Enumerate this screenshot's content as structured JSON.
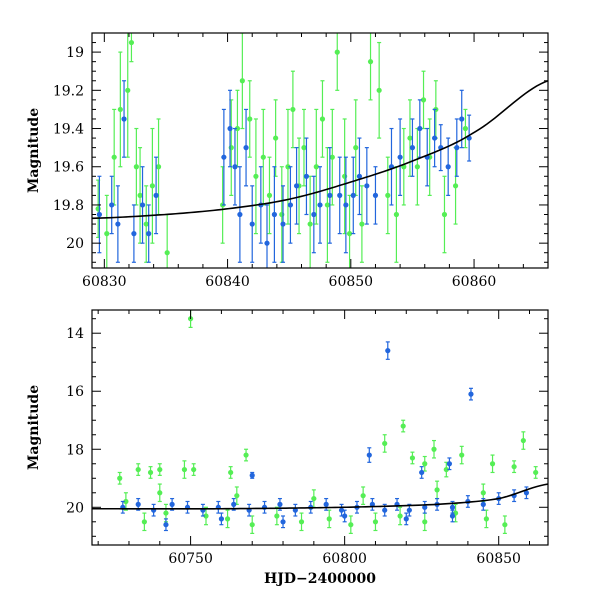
{
  "chart_data": [
    {
      "type": "scatter",
      "title": "",
      "xlabel": "",
      "ylabel": "Magnitude",
      "xlim": [
        60829,
        60866
      ],
      "ylim": [
        20.13,
        18.9
      ],
      "y_inverted": true,
      "xticks": [
        60830,
        60840,
        60850,
        60860
      ],
      "yticks": [
        19,
        19.2,
        19.4,
        19.6,
        19.8,
        20
      ],
      "colors": {
        "green": "#55ee55",
        "blue": "#2266dd",
        "curve": "#000000"
      },
      "trend_curve": {
        "x": [
          60829,
          60835,
          60840,
          60845,
          60850,
          60855,
          60860,
          60866
        ],
        "y": [
          19.87,
          19.85,
          19.82,
          19.77,
          19.68,
          19.57,
          19.42,
          19.15
        ]
      },
      "series": [
        {
          "color": "green",
          "points": [
            [
              60829.5,
              19.82,
              0.15
            ],
            [
              60830.2,
              19.95,
              0.2
            ],
            [
              60830.8,
              19.55,
              0.25
            ],
            [
              60831.3,
              19.3,
              0.3
            ],
            [
              60831.9,
              19.2,
              0.35
            ],
            [
              60832.2,
              18.95,
              0.1
            ],
            [
              60832.6,
              19.6,
              0.2
            ],
            [
              60832.9,
              19.75,
              0.25
            ],
            [
              60833.4,
              19.9,
              0.2
            ],
            [
              60833.9,
              19.7,
              0.3
            ],
            [
              60834.4,
              19.6,
              0.25
            ],
            [
              60835.1,
              20.05,
              0.2
            ],
            [
              60839.6,
              19.8,
              0.2
            ],
            [
              60840.3,
              19.5,
              0.25
            ],
            [
              60840.8,
              19.4,
              0.2
            ],
            [
              60841.2,
              19.15,
              0.25
            ],
            [
              60841.8,
              19.35,
              0.2
            ],
            [
              60842.3,
              19.65,
              0.3
            ],
            [
              60842.9,
              19.55,
              0.25
            ],
            [
              60843.4,
              19.75,
              0.2
            ],
            [
              60843.9,
              19.45,
              0.2
            ],
            [
              60844.4,
              19.85,
              0.25
            ],
            [
              60844.9,
              19.6,
              0.3
            ],
            [
              60845.3,
              19.3,
              0.2
            ],
            [
              60845.8,
              19.7,
              0.25
            ],
            [
              60846.2,
              19.5,
              0.2
            ],
            [
              60846.7,
              19.9,
              0.25
            ],
            [
              60847.2,
              19.6,
              0.3
            ],
            [
              60847.7,
              19.35,
              0.2
            ],
            [
              60848.1,
              19.8,
              0.3
            ],
            [
              60848.5,
              19.55,
              0.25
            ],
            [
              60848.9,
              19.0,
              0.2
            ],
            [
              60849.5,
              19.65,
              0.3
            ],
            [
              60849.9,
              19.95,
              0.2
            ],
            [
              60850.4,
              19.5,
              0.25
            ],
            [
              60850.9,
              19.9,
              0.2
            ],
            [
              60851.6,
              19.05,
              0.2
            ],
            [
              60852.3,
              19.2,
              0.25
            ],
            [
              60853.0,
              19.75,
              0.2
            ],
            [
              60853.7,
              19.85,
              0.25
            ],
            [
              60854.3,
              19.6,
              0.2
            ],
            [
              60854.8,
              19.45,
              0.2
            ],
            [
              60855.4,
              19.6,
              0.2
            ],
            [
              60855.9,
              19.25,
              0.15
            ],
            [
              60856.4,
              19.55,
              0.2
            ],
            [
              60856.9,
              19.3,
              0.15
            ],
            [
              60857.6,
              19.85,
              0.2
            ],
            [
              60858.5,
              19.7,
              0.2
            ],
            [
              60859.3,
              19.4,
              0.1
            ]
          ]
        },
        {
          "color": "blue",
          "points": [
            [
              60829.6,
              19.85,
              0.2
            ],
            [
              60830.6,
              19.8,
              0.15
            ],
            [
              60831.1,
              19.9,
              0.2
            ],
            [
              60831.6,
              19.35,
              0.2
            ],
            [
              60832.4,
              19.95,
              0.15
            ],
            [
              60833.1,
              19.8,
              0.2
            ],
            [
              60833.6,
              19.95,
              0.15
            ],
            [
              60834.2,
              19.75,
              0.2
            ],
            [
              60839.7,
              19.55,
              0.25
            ],
            [
              60840.2,
              19.4,
              0.2
            ],
            [
              60840.6,
              19.6,
              0.2
            ],
            [
              60841.0,
              19.85,
              0.25
            ],
            [
              60841.5,
              19.5,
              0.2
            ],
            [
              60842.0,
              19.9,
              0.2
            ],
            [
              60842.7,
              19.8,
              0.2
            ],
            [
              60843.2,
              20.0,
              0.2
            ],
            [
              60843.8,
              19.85,
              0.25
            ],
            [
              60844.5,
              19.9,
              0.2
            ],
            [
              60845.1,
              19.8,
              0.2
            ],
            [
              60845.6,
              19.7,
              0.2
            ],
            [
              60846.4,
              19.65,
              0.2
            ],
            [
              60847.0,
              19.85,
              0.2
            ],
            [
              60847.5,
              19.8,
              0.2
            ],
            [
              60848.3,
              19.75,
              0.25
            ],
            [
              60849.1,
              19.75,
              0.2
            ],
            [
              60849.6,
              19.8,
              0.25
            ],
            [
              60850.2,
              19.75,
              0.2
            ],
            [
              60850.7,
              19.65,
              0.2
            ],
            [
              60851.3,
              19.7,
              0.2
            ],
            [
              60852.0,
              19.75,
              0.15
            ],
            [
              60853.3,
              19.6,
              0.2
            ],
            [
              60854.0,
              19.55,
              0.2
            ],
            [
              60855.0,
              19.5,
              0.15
            ],
            [
              60855.6,
              19.4,
              0.15
            ],
            [
              60856.2,
              19.55,
              0.15
            ],
            [
              60856.8,
              19.45,
              0.15
            ],
            [
              60857.3,
              19.5,
              0.12
            ],
            [
              60857.9,
              19.6,
              0.15
            ],
            [
              60858.6,
              19.5,
              0.15
            ],
            [
              60859.0,
              19.35,
              0.15
            ],
            [
              60859.6,
              19.45,
              0.12
            ]
          ]
        }
      ]
    },
    {
      "type": "scatter",
      "title": "",
      "xlabel": "HJD−2400000",
      "ylabel": "Magnitude",
      "xlim": [
        60718,
        60866
      ],
      "ylim": [
        21.3,
        13.2
      ],
      "y_inverted": true,
      "xticks": [
        60750,
        60800,
        60850
      ],
      "yticks": [
        14,
        16,
        18,
        20
      ],
      "trend_curve": {
        "x": [
          60718,
          60760,
          60800,
          60830,
          60850,
          60866
        ],
        "y": [
          20.05,
          20.05,
          20.0,
          19.9,
          19.7,
          19.2
        ]
      },
      "series": [
        {
          "color": "green",
          "points": [
            [
              60750,
              13.5,
              0.3
            ],
            [
              60727,
              19.0,
              0.2
            ],
            [
              60733,
              18.7,
              0.2
            ],
            [
              60737,
              18.8,
              0.2
            ],
            [
              60740,
              18.7,
              0.2
            ],
            [
              60748,
              18.7,
              0.3
            ],
            [
              60751,
              18.7,
              0.2
            ],
            [
              60763,
              18.8,
              0.2
            ],
            [
              60768,
              18.2,
              0.2
            ],
            [
              60813,
              17.8,
              0.3
            ],
            [
              60819,
              17.2,
              0.2
            ],
            [
              60822,
              18.3,
              0.2
            ],
            [
              60826,
              18.5,
              0.25
            ],
            [
              60829,
              18.0,
              0.3
            ],
            [
              60833,
              18.7,
              0.25
            ],
            [
              60838,
              18.2,
              0.3
            ],
            [
              60848,
              18.5,
              0.3
            ],
            [
              60855,
              18.6,
              0.2
            ],
            [
              60858,
              17.7,
              0.3
            ],
            [
              60862,
              18.8,
              0.2
            ],
            [
              60729,
              19.8,
              0.3
            ],
            [
              60735,
              20.5,
              0.3
            ],
            [
              60742,
              20.2,
              0.3
            ],
            [
              60755,
              20.3,
              0.3
            ],
            [
              60762,
              20.4,
              0.3
            ],
            [
              60770,
              20.6,
              0.3
            ],
            [
              60778,
              20.3,
              0.3
            ],
            [
              60786,
              20.5,
              0.3
            ],
            [
              60795,
              20.4,
              0.3
            ],
            [
              60802,
              20.6,
              0.3
            ],
            [
              60810,
              20.5,
              0.3
            ],
            [
              60818,
              20.3,
              0.3
            ],
            [
              60826,
              20.5,
              0.3
            ],
            [
              60836,
              20.2,
              0.3
            ],
            [
              60846,
              20.4,
              0.3
            ],
            [
              60852,
              20.6,
              0.3
            ],
            [
              60740,
              19.5,
              0.3
            ],
            [
              60765,
              19.6,
              0.3
            ],
            [
              60790,
              19.7,
              0.3
            ],
            [
              60806,
              19.6,
              0.3
            ],
            [
              60830,
              19.4,
              0.3
            ],
            [
              60845,
              19.5,
              0.3
            ]
          ]
        },
        {
          "color": "blue",
          "points": [
            [
              60814,
              14.6,
              0.3
            ],
            [
              60841,
              16.1,
              0.2
            ],
            [
              60808,
              18.2,
              0.25
            ],
            [
              60834,
              18.5,
              0.2
            ],
            [
              60825,
              18.8,
              0.2
            ],
            [
              60770,
              18.9,
              0.1
            ],
            [
              60728,
              20.0,
              0.2
            ],
            [
              60733,
              19.9,
              0.2
            ],
            [
              60738,
              20.1,
              0.2
            ],
            [
              60744,
              19.9,
              0.2
            ],
            [
              60749,
              20.0,
              0.2
            ],
            [
              60754,
              20.1,
              0.2
            ],
            [
              60759,
              20.0,
              0.2
            ],
            [
              60764,
              19.9,
              0.2
            ],
            [
              60769,
              20.1,
              0.2
            ],
            [
              60774,
              20.0,
              0.2
            ],
            [
              60779,
              19.9,
              0.2
            ],
            [
              60784,
              20.1,
              0.2
            ],
            [
              60789,
              20.0,
              0.2
            ],
            [
              60794,
              19.9,
              0.2
            ],
            [
              60799,
              20.1,
              0.2
            ],
            [
              60804,
              20.0,
              0.2
            ],
            [
              60809,
              19.9,
              0.2
            ],
            [
              60813,
              20.1,
              0.2
            ],
            [
              60817,
              19.9,
              0.2
            ],
            [
              60821,
              20.1,
              0.2
            ],
            [
              60826,
              20.0,
              0.2
            ],
            [
              60830,
              19.9,
              0.2
            ],
            [
              60835,
              20.0,
              0.2
            ],
            [
              60840,
              19.8,
              0.2
            ],
            [
              60845,
              19.9,
              0.2
            ],
            [
              60850,
              19.7,
              0.2
            ],
            [
              60855,
              19.6,
              0.2
            ],
            [
              60859,
              19.5,
              0.2
            ],
            [
              60742,
              20.6,
              0.2
            ],
            [
              60760,
              20.4,
              0.2
            ],
            [
              60780,
              20.5,
              0.2
            ],
            [
              60800,
              20.3,
              0.2
            ],
            [
              60820,
              20.4,
              0.2
            ],
            [
              60835,
              20.3,
              0.2
            ]
          ]
        }
      ]
    }
  ]
}
